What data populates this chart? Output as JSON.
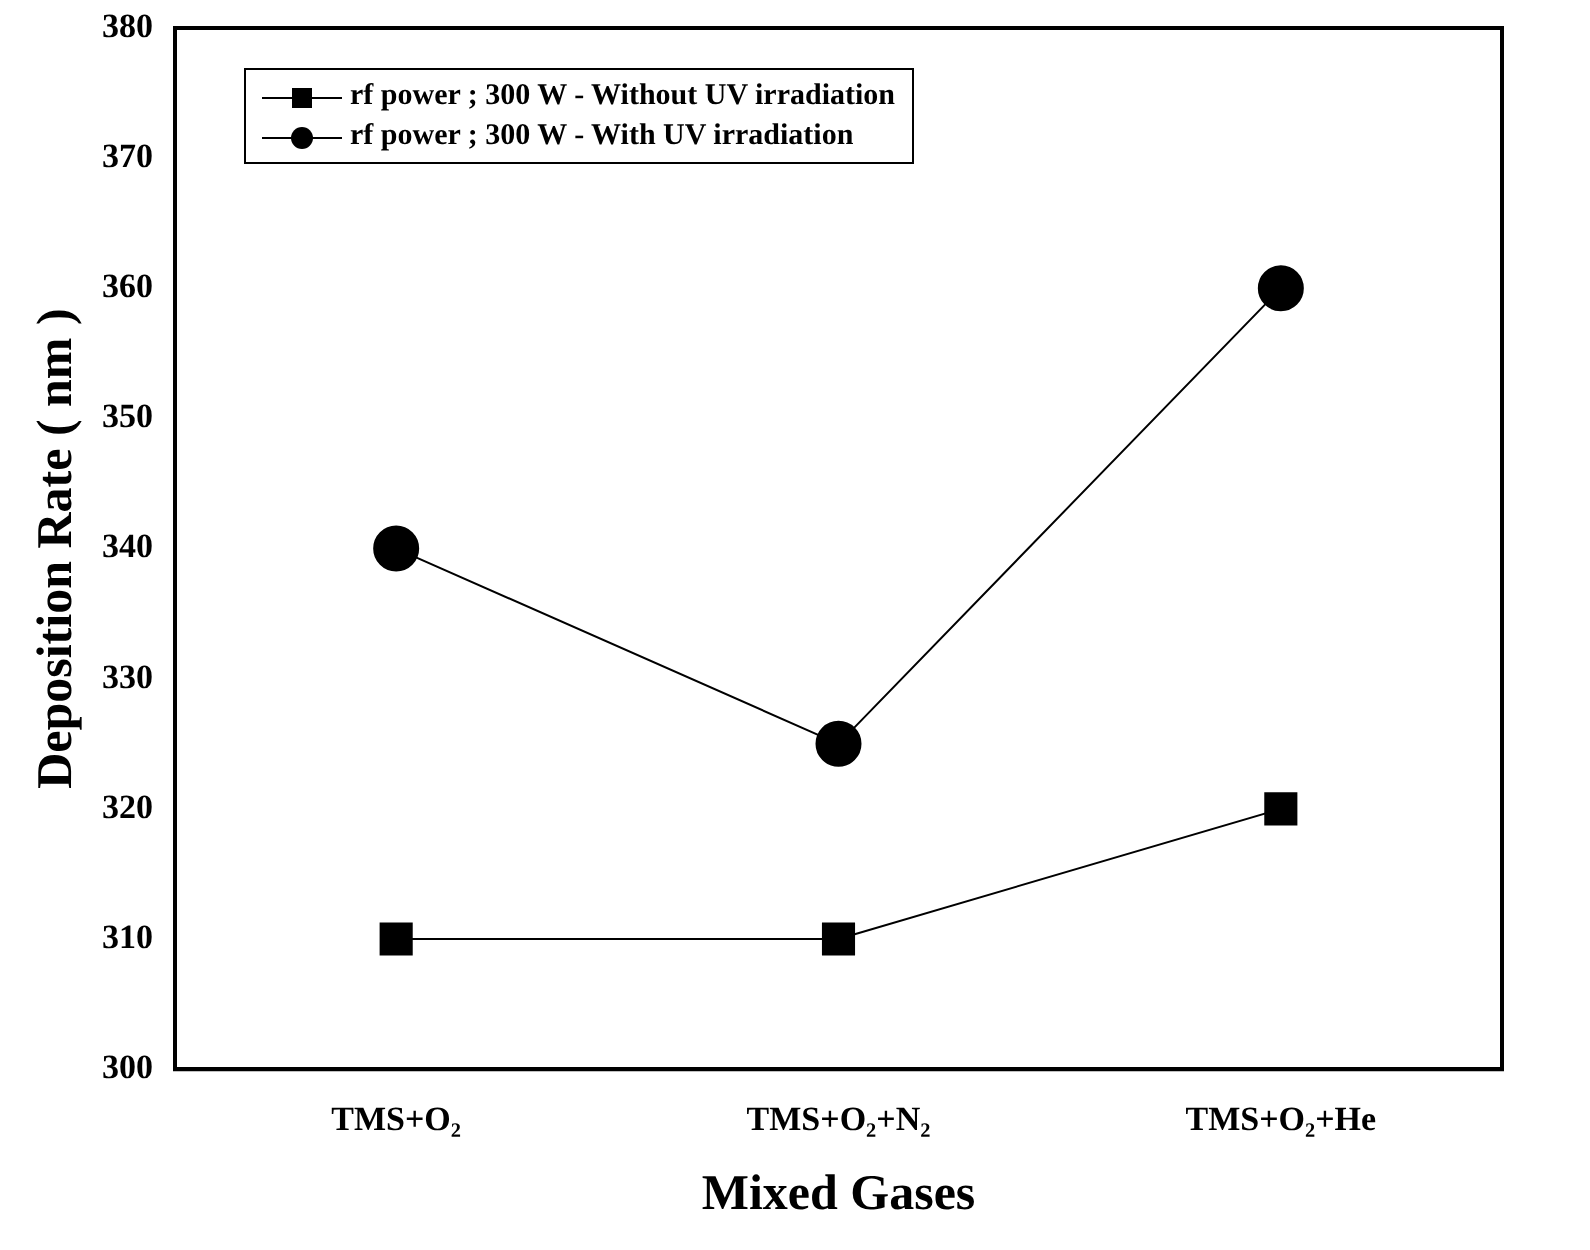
{
  "chart_data": {
    "type": "line",
    "xlabel": "Mixed Gases",
    "ylabel": "Deposition Rate ( nm )",
    "categories": [
      "TMS+O₂",
      "TMS+O₂+N₂",
      "TMS+O₂+He"
    ],
    "series": [
      {
        "name": "rf power ; 300 W - Without UV irradiation",
        "color": "#000000",
        "marker": "square",
        "values": [
          310,
          310,
          320
        ]
      },
      {
        "name": "rf power ; 300 W - With UV irradiation",
        "color": "#000000",
        "marker": "circle",
        "values": [
          340,
          325,
          360
        ]
      }
    ],
    "ylim": [
      300,
      380
    ],
    "yticks": [
      300,
      310,
      320,
      330,
      340,
      350,
      360,
      370,
      380
    ],
    "grid": false,
    "legend": "top left",
    "line_style": "solid"
  }
}
